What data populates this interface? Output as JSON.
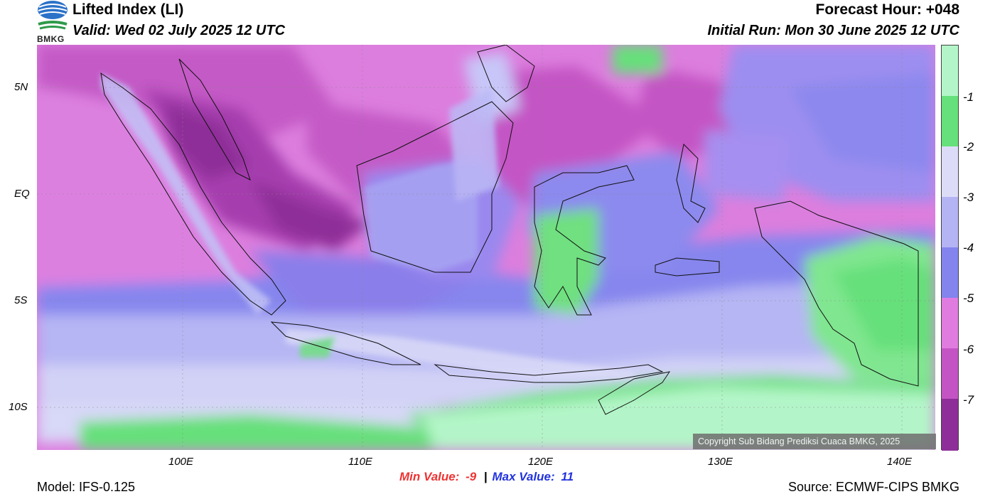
{
  "header": {
    "title": "Lifted Index (LI)",
    "valid": "Valid: Wed 02 July 2025 12 UTC",
    "forecast_hour": "Forecast Hour: +048",
    "initial_run": "Initial Run: Mon 30 June 2025 12 UTC",
    "logo_text": "BMKG"
  },
  "map": {
    "lat_labels": [
      "5N",
      "EQ",
      "5S",
      "10S"
    ],
    "lon_labels": [
      "100E",
      "110E",
      "120E",
      "130E",
      "140E"
    ],
    "copyright": "Copyright Sub Bidang Prediksi Cuaca BMKG, 2025"
  },
  "colorbar": {
    "labels": [
      "-1",
      "-2",
      "-3",
      "-4",
      "-5",
      "-6",
      "-7"
    ],
    "colors": [
      "#b3f5c8",
      "#66e07a",
      "#dcdcf8",
      "#b4b4f4",
      "#8484ee",
      "#e07ce0",
      "#c454c4",
      "#8e2e98"
    ]
  },
  "footer": {
    "min_label": "Min Value:",
    "min_value": "-9",
    "separator": "|",
    "max_label": "Max Value:",
    "max_value": "11",
    "min_color": "#ee3333",
    "max_color": "#2233dd",
    "model": "Model: IFS-0.125",
    "source": "Source: ECMWF-CIPS BMKG"
  }
}
